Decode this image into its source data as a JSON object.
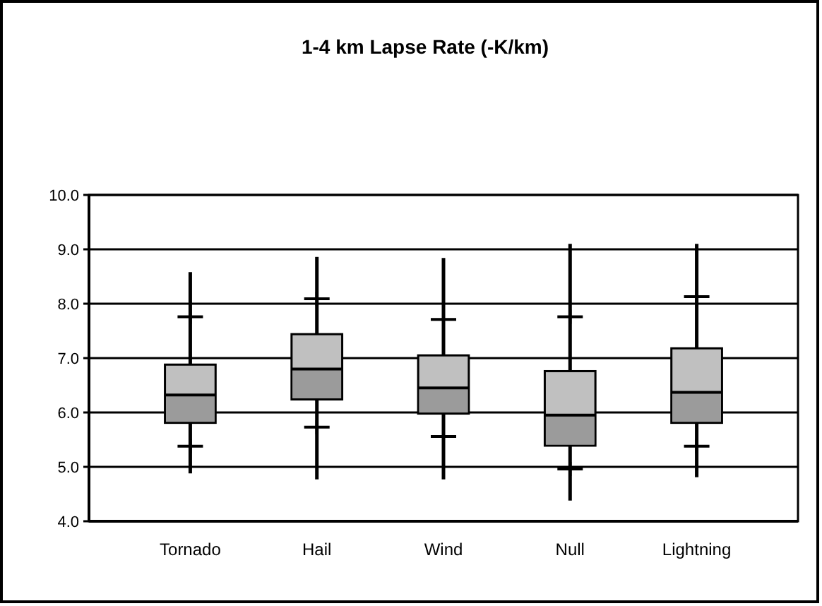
{
  "chart_data": {
    "type": "box",
    "title": "1-4 km Lapse Rate (-K/km)",
    "categories": [
      "Tornado",
      "Hail",
      "Wind",
      "Null",
      "Lightning"
    ],
    "ylim": [
      4,
      10
    ],
    "yticks": [
      {
        "value": 4,
        "label": "4.0"
      },
      {
        "value": 5,
        "label": "5.0"
      },
      {
        "value": 6,
        "label": "6.0"
      },
      {
        "value": 7,
        "label": "7.0"
      },
      {
        "value": 8,
        "label": "8.0"
      },
      {
        "value": 9,
        "label": "9.0"
      },
      {
        "value": 10,
        "label": "10.0"
      }
    ],
    "grid": "y",
    "color": "#c0c0c0",
    "boxes": [
      {
        "low": 4.88,
        "q1": 5.81,
        "median": 6.32,
        "q3": 6.88,
        "high": 8.58
      },
      {
        "low": 4.77,
        "q1": 6.24,
        "median": 6.8,
        "q3": 7.44,
        "high": 8.86
      },
      {
        "low": 4.77,
        "q1": 5.98,
        "median": 6.45,
        "q3": 7.05,
        "high": 8.84
      },
      {
        "low": 4.38,
        "q1": 5.39,
        "median": 5.95,
        "q3": 6.76,
        "high": 9.1
      },
      {
        "low": 4.81,
        "q1": 5.81,
        "median": 6.37,
        "q3": 7.18,
        "high": 9.1
      }
    ],
    "series": [
      {
        "type": "scatter",
        "marker": "cross",
        "color": "#000000",
        "x": [
          "Tornado",
          "Tornado",
          "Hail",
          "Hail",
          "Wind",
          "Wind",
          "Null",
          "Null",
          "Lightning",
          "Lightning"
        ],
        "values": [
          5.38,
          7.76,
          5.73,
          8.09,
          5.56,
          7.71,
          4.96,
          7.76,
          5.38,
          8.13
        ]
      }
    ]
  }
}
